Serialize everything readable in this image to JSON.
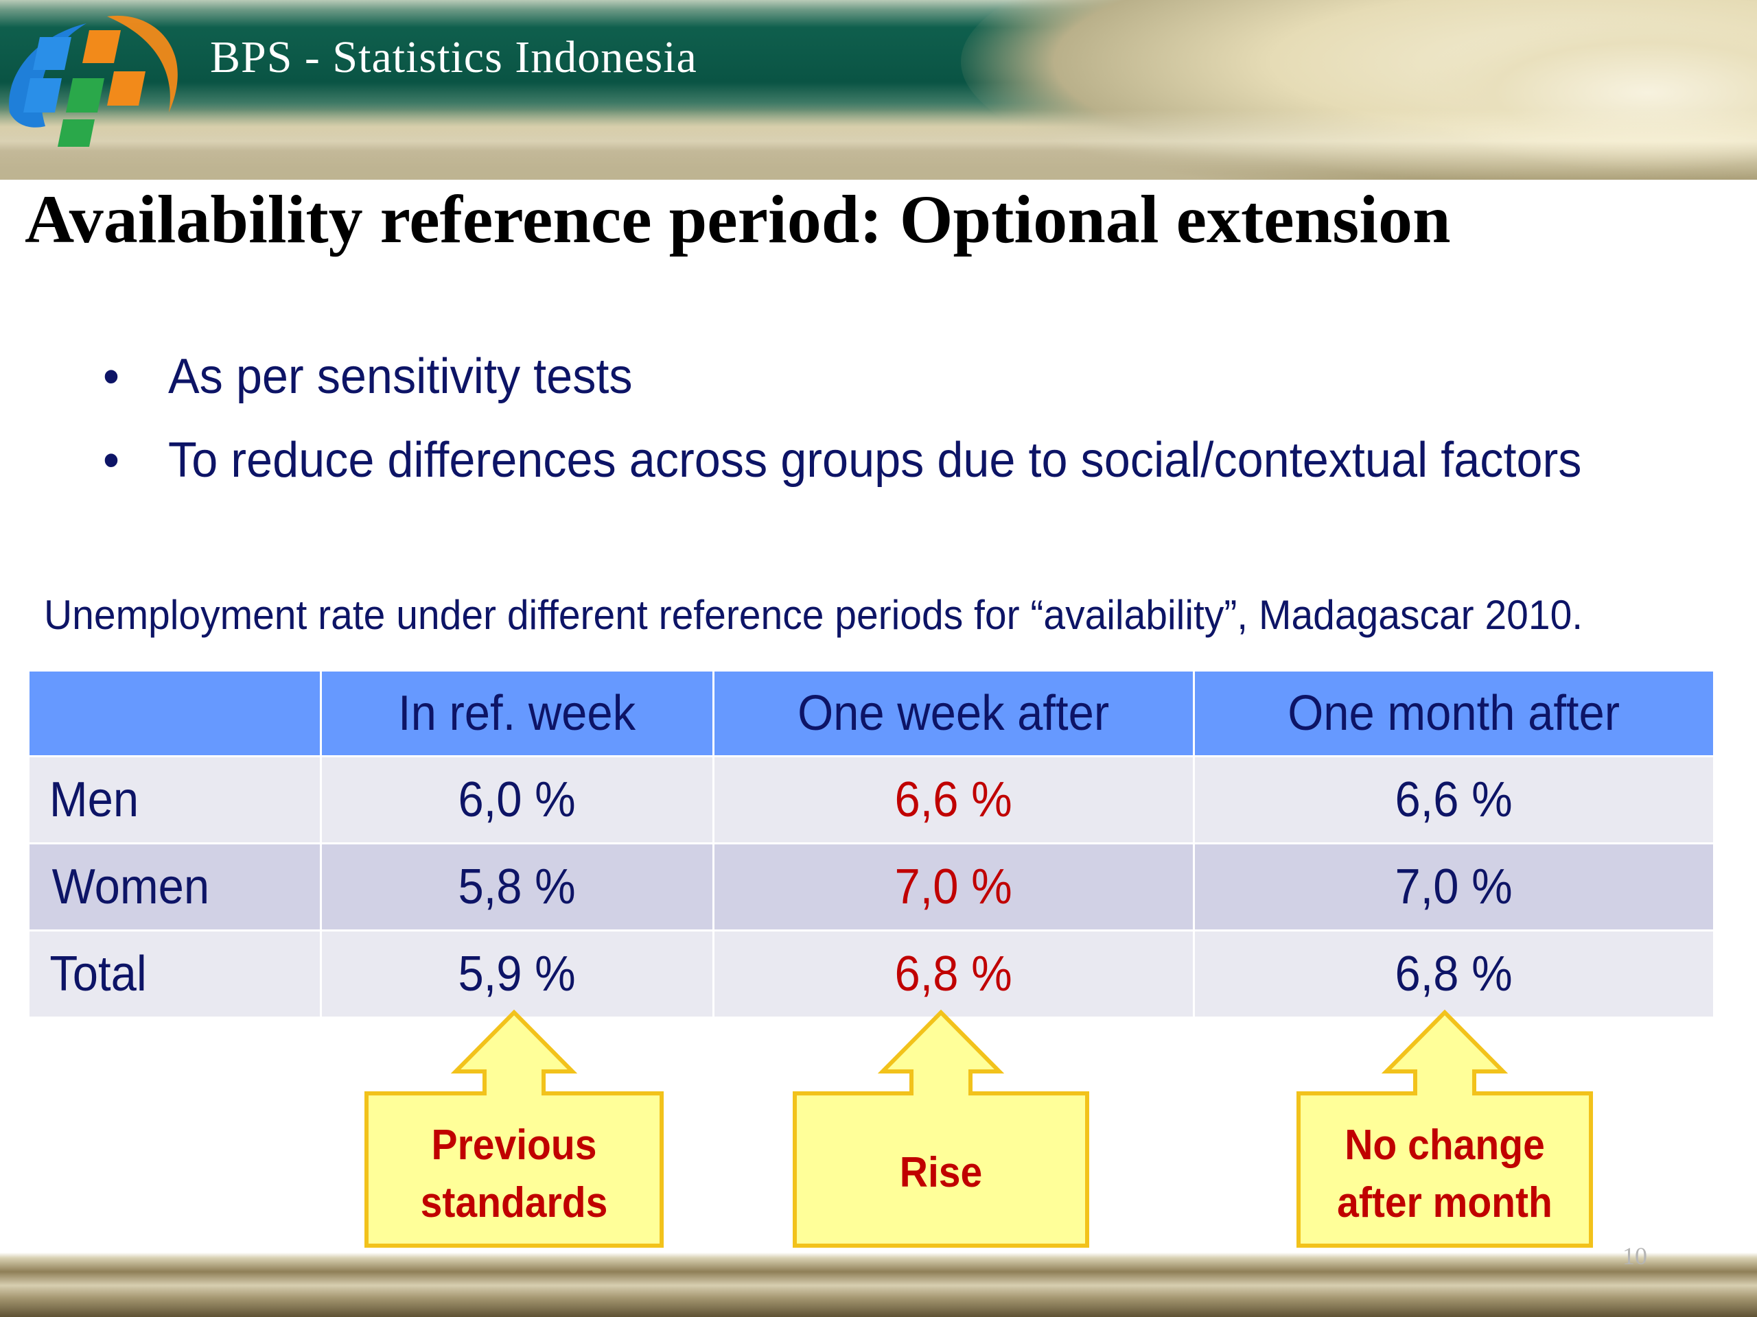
{
  "header": {
    "brand": "BPS - Statistics Indonesia",
    "logo_icon": "bps-logo-icon",
    "colors": {
      "band": "#0a5444",
      "cream": "#e9e0bd",
      "logo_blue": "#1f7fd9",
      "logo_orange": "#f28a1a",
      "logo_green": "#2aa84a"
    }
  },
  "title": "Availability reference period: Optional extension",
  "bullets": [
    {
      "marker": "•",
      "text": "As per sensitivity tests"
    },
    {
      "marker": "•",
      "text": "To reduce differences across groups due to social/contextual factors"
    }
  ],
  "caption": "Unemployment rate under different reference periods for “availability”, Madagascar 2010.",
  "chart_data": {
    "type": "table",
    "columns": [
      "",
      "In ref. week",
      "One week after",
      "One month after"
    ],
    "rows": [
      {
        "label": "Men",
        "values": [
          "6,0 %",
          "6,6 %",
          "6,6 %"
        ]
      },
      {
        "label": "Women",
        "values": [
          "5,8 %",
          "7,0 %",
          "7,0 %"
        ]
      },
      {
        "label": "Total",
        "values": [
          "5,9 %",
          "6,8 %",
          "6,8 %"
        ]
      }
    ],
    "highlight_column": "One week after",
    "colors": {
      "header": "#6699ff",
      "row_light": "#e9e9f1",
      "row_dark": "#d1d1e5",
      "text": "#0d1466",
      "highlight": "#c00000"
    }
  },
  "callouts": [
    {
      "lines": [
        "Previous",
        "standards"
      ],
      "points_to": "In ref. week"
    },
    {
      "lines": [
        "Rise"
      ],
      "points_to": "One week after"
    },
    {
      "lines": [
        "No change",
        "after month"
      ],
      "points_to": "One month after"
    }
  ],
  "callout_colors": {
    "fill": "#ffff99",
    "border": "#f2c21b",
    "text": "#c00000"
  },
  "page_number": "10"
}
